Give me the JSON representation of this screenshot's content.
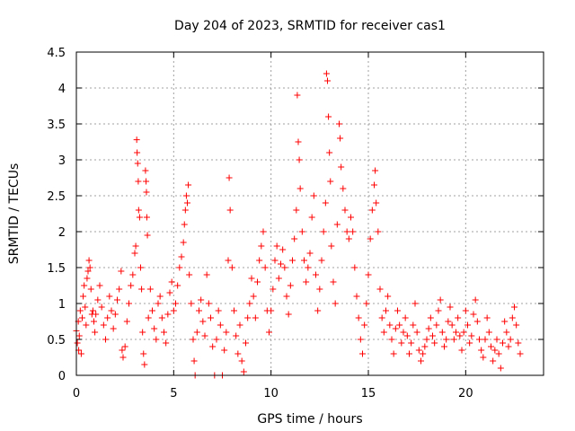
{
  "chart_data": {
    "type": "scatter",
    "title": "Day 204 of 2023, SRMTID for receiver cas1",
    "xlabel": "GPS time / hours",
    "ylabel": "SRMTID / TECUs",
    "xlim": [
      0,
      24
    ],
    "ylim": [
      0,
      4.5
    ],
    "x_ticks": [
      0,
      5,
      10,
      15,
      20
    ],
    "y_ticks": [
      0,
      0.5,
      1,
      1.5,
      2,
      2.5,
      3,
      3.5,
      4,
      4.5
    ],
    "x_tick_labels": [
      "0",
      "5",
      "10",
      "15",
      "20"
    ],
    "y_tick_labels": [
      "0",
      "0.5",
      "1",
      "1.5",
      "2",
      "2.5",
      "3",
      "3.5",
      "4",
      "4.5"
    ],
    "grid": true,
    "marker": "+",
    "series": [
      {
        "name": "SRMTID",
        "color": "#ff0000",
        "points": [
          [
            0.0,
            0.62
          ],
          [
            0.05,
            0.45
          ],
          [
            0.1,
            0.75
          ],
          [
            0.12,
            0.35
          ],
          [
            0.15,
            0.55
          ],
          [
            0.2,
            0.9
          ],
          [
            0.25,
            0.3
          ],
          [
            0.3,
            0.8
          ],
          [
            0.35,
            1.1
          ],
          [
            0.4,
            1.25
          ],
          [
            0.45,
            0.95
          ],
          [
            0.5,
            0.7
          ],
          [
            0.55,
            1.35
          ],
          [
            0.6,
            1.45
          ],
          [
            0.65,
            1.6
          ],
          [
            0.7,
            1.5
          ],
          [
            0.75,
            1.2
          ],
          [
            0.8,
            0.85
          ],
          [
            0.85,
            0.9
          ],
          [
            0.9,
            0.75
          ],
          [
            0.95,
            0.6
          ],
          [
            1.0,
            0.85
          ],
          [
            1.1,
            1.05
          ],
          [
            1.2,
            1.25
          ],
          [
            1.3,
            0.95
          ],
          [
            1.4,
            0.7
          ],
          [
            1.5,
            0.5
          ],
          [
            1.6,
            0.8
          ],
          [
            1.7,
            1.1
          ],
          [
            1.8,
            0.9
          ],
          [
            1.9,
            0.65
          ],
          [
            2.0,
            0.85
          ],
          [
            2.1,
            1.05
          ],
          [
            2.2,
            1.2
          ],
          [
            2.3,
            1.45
          ],
          [
            2.35,
            0.35
          ],
          [
            2.4,
            0.25
          ],
          [
            2.5,
            0.4
          ],
          [
            2.6,
            0.75
          ],
          [
            2.7,
            1.0
          ],
          [
            2.8,
            1.25
          ],
          [
            2.9,
            1.4
          ],
          [
            3.0,
            1.7
          ],
          [
            3.05,
            1.8
          ],
          [
            3.1,
            3.28
          ],
          [
            3.12,
            3.1
          ],
          [
            3.15,
            2.95
          ],
          [
            3.18,
            2.7
          ],
          [
            3.2,
            2.3
          ],
          [
            3.25,
            2.2
          ],
          [
            3.3,
            1.5
          ],
          [
            3.35,
            1.2
          ],
          [
            3.4,
            0.6
          ],
          [
            3.45,
            0.3
          ],
          [
            3.5,
            0.15
          ],
          [
            3.55,
            2.85
          ],
          [
            3.58,
            2.7
          ],
          [
            3.6,
            2.55
          ],
          [
            3.62,
            2.2
          ],
          [
            3.65,
            1.95
          ],
          [
            3.7,
            0.8
          ],
          [
            3.8,
            1.2
          ],
          [
            3.9,
            0.9
          ],
          [
            4.0,
            0.65
          ],
          [
            4.1,
            0.5
          ],
          [
            4.2,
            1.0
          ],
          [
            4.3,
            1.1
          ],
          [
            4.4,
            0.8
          ],
          [
            4.5,
            0.6
          ],
          [
            4.6,
            0.45
          ],
          [
            4.7,
            0.85
          ],
          [
            4.8,
            1.15
          ],
          [
            4.9,
            1.3
          ],
          [
            5.0,
            0.9
          ],
          [
            5.1,
            1.0
          ],
          [
            5.2,
            1.25
          ],
          [
            5.3,
            1.5
          ],
          [
            5.4,
            1.65
          ],
          [
            5.5,
            1.85
          ],
          [
            5.55,
            2.1
          ],
          [
            5.6,
            2.3
          ],
          [
            5.65,
            2.5
          ],
          [
            5.7,
            2.4
          ],
          [
            5.75,
            2.65
          ],
          [
            5.8,
            1.4
          ],
          [
            5.9,
            1.0
          ],
          [
            6.0,
            0.5
          ],
          [
            6.05,
            0.2
          ],
          [
            6.1,
            0.0
          ],
          [
            6.2,
            0.6
          ],
          [
            6.3,
            0.9
          ],
          [
            6.4,
            1.05
          ],
          [
            6.5,
            0.75
          ],
          [
            6.6,
            0.55
          ],
          [
            6.7,
            1.4
          ],
          [
            6.8,
            1.0
          ],
          [
            6.9,
            0.8
          ],
          [
            7.0,
            0.4
          ],
          [
            7.1,
            0.0
          ],
          [
            7.2,
            0.5
          ],
          [
            7.3,
            0.9
          ],
          [
            7.4,
            0.7
          ],
          [
            7.5,
            0.0
          ],
          [
            7.6,
            0.35
          ],
          [
            7.7,
            0.6
          ],
          [
            7.8,
            1.6
          ],
          [
            7.85,
            2.75
          ],
          [
            7.9,
            2.3
          ],
          [
            8.0,
            1.5
          ],
          [
            8.1,
            0.9
          ],
          [
            8.2,
            0.55
          ],
          [
            8.3,
            0.3
          ],
          [
            8.4,
            0.7
          ],
          [
            8.5,
            0.2
          ],
          [
            8.6,
            0.05
          ],
          [
            8.7,
            0.45
          ],
          [
            8.8,
            0.8
          ],
          [
            8.9,
            1.0
          ],
          [
            9.0,
            1.35
          ],
          [
            9.1,
            1.1
          ],
          [
            9.2,
            0.8
          ],
          [
            9.3,
            1.3
          ],
          [
            9.4,
            1.6
          ],
          [
            9.5,
            1.8
          ],
          [
            9.6,
            2.0
          ],
          [
            9.7,
            1.5
          ],
          [
            9.8,
            0.9
          ],
          [
            9.9,
            0.6
          ],
          [
            10.0,
            0.9
          ],
          [
            10.1,
            1.2
          ],
          [
            10.2,
            1.6
          ],
          [
            10.3,
            1.8
          ],
          [
            10.4,
            1.35
          ],
          [
            10.5,
            1.55
          ],
          [
            10.6,
            1.75
          ],
          [
            10.7,
            1.5
          ],
          [
            10.8,
            1.1
          ],
          [
            10.9,
            0.85
          ],
          [
            11.0,
            1.25
          ],
          [
            11.1,
            1.6
          ],
          [
            11.2,
            1.9
          ],
          [
            11.3,
            2.3
          ],
          [
            11.35,
            3.9
          ],
          [
            11.4,
            3.25
          ],
          [
            11.45,
            3.0
          ],
          [
            11.5,
            2.6
          ],
          [
            11.6,
            2.0
          ],
          [
            11.7,
            1.6
          ],
          [
            11.8,
            1.3
          ],
          [
            11.9,
            1.5
          ],
          [
            12.0,
            1.7
          ],
          [
            12.1,
            2.2
          ],
          [
            12.2,
            2.5
          ],
          [
            12.3,
            1.4
          ],
          [
            12.4,
            0.9
          ],
          [
            12.5,
            1.2
          ],
          [
            12.6,
            1.6
          ],
          [
            12.7,
            2.0
          ],
          [
            12.8,
            2.4
          ],
          [
            12.85,
            4.2
          ],
          [
            12.9,
            4.1
          ],
          [
            12.95,
            3.6
          ],
          [
            13.0,
            3.1
          ],
          [
            13.05,
            2.7
          ],
          [
            13.1,
            1.8
          ],
          [
            13.2,
            1.3
          ],
          [
            13.3,
            1.0
          ],
          [
            13.4,
            2.1
          ],
          [
            13.5,
            3.5
          ],
          [
            13.55,
            3.3
          ],
          [
            13.6,
            2.9
          ],
          [
            13.7,
            2.6
          ],
          [
            13.8,
            2.3
          ],
          [
            13.9,
            2.0
          ],
          [
            14.0,
            1.9
          ],
          [
            14.1,
            2.2
          ],
          [
            14.2,
            2.0
          ],
          [
            14.3,
            1.5
          ],
          [
            14.4,
            1.1
          ],
          [
            14.5,
            0.8
          ],
          [
            14.6,
            0.5
          ],
          [
            14.7,
            0.3
          ],
          [
            14.8,
            0.7
          ],
          [
            14.9,
            1.0
          ],
          [
            15.0,
            1.4
          ],
          [
            15.1,
            1.9
          ],
          [
            15.2,
            2.3
          ],
          [
            15.3,
            2.65
          ],
          [
            15.35,
            2.85
          ],
          [
            15.4,
            2.4
          ],
          [
            15.5,
            2.0
          ],
          [
            15.6,
            1.2
          ],
          [
            15.7,
            0.8
          ],
          [
            15.8,
            0.6
          ],
          [
            15.9,
            0.9
          ],
          [
            16.0,
            1.1
          ],
          [
            16.1,
            0.7
          ],
          [
            16.2,
            0.5
          ],
          [
            16.3,
            0.3
          ],
          [
            16.4,
            0.65
          ],
          [
            16.5,
            0.9
          ],
          [
            16.6,
            0.7
          ],
          [
            16.7,
            0.45
          ],
          [
            16.8,
            0.6
          ],
          [
            16.9,
            0.8
          ],
          [
            17.0,
            0.55
          ],
          [
            17.1,
            0.3
          ],
          [
            17.2,
            0.45
          ],
          [
            17.3,
            0.7
          ],
          [
            17.4,
            1.0
          ],
          [
            17.5,
            0.6
          ],
          [
            17.6,
            0.35
          ],
          [
            17.7,
            0.2
          ],
          [
            17.8,
            0.3
          ],
          [
            17.9,
            0.4
          ],
          [
            18.0,
            0.5
          ],
          [
            18.1,
            0.65
          ],
          [
            18.2,
            0.8
          ],
          [
            18.3,
            0.55
          ],
          [
            18.4,
            0.45
          ],
          [
            18.5,
            0.7
          ],
          [
            18.6,
            0.9
          ],
          [
            18.7,
            1.05
          ],
          [
            18.8,
            0.6
          ],
          [
            18.9,
            0.4
          ],
          [
            19.0,
            0.5
          ],
          [
            19.1,
            0.75
          ],
          [
            19.2,
            0.95
          ],
          [
            19.3,
            0.7
          ],
          [
            19.4,
            0.5
          ],
          [
            19.5,
            0.6
          ],
          [
            19.6,
            0.8
          ],
          [
            19.7,
            0.55
          ],
          [
            19.8,
            0.35
          ],
          [
            19.9,
            0.6
          ],
          [
            20.0,
            0.9
          ],
          [
            20.1,
            0.7
          ],
          [
            20.2,
            0.45
          ],
          [
            20.3,
            0.55
          ],
          [
            20.4,
            0.85
          ],
          [
            20.5,
            1.05
          ],
          [
            20.6,
            0.75
          ],
          [
            20.7,
            0.5
          ],
          [
            20.8,
            0.35
          ],
          [
            20.9,
            0.25
          ],
          [
            21.0,
            0.5
          ],
          [
            21.1,
            0.8
          ],
          [
            21.2,
            0.6
          ],
          [
            21.3,
            0.4
          ],
          [
            21.4,
            0.2
          ],
          [
            21.5,
            0.35
          ],
          [
            21.6,
            0.5
          ],
          [
            21.7,
            0.3
          ],
          [
            21.8,
            0.1
          ],
          [
            21.9,
            0.45
          ],
          [
            22.0,
            0.75
          ],
          [
            22.1,
            0.6
          ],
          [
            22.2,
            0.4
          ],
          [
            22.3,
            0.5
          ],
          [
            22.4,
            0.8
          ],
          [
            22.5,
            0.95
          ],
          [
            22.6,
            0.7
          ],
          [
            22.7,
            0.45
          ],
          [
            22.8,
            0.3
          ]
        ]
      }
    ]
  }
}
